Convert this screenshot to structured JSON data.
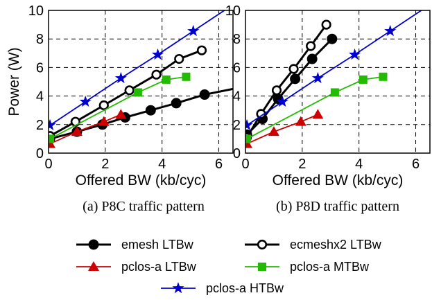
{
  "chart_data": [
    {
      "type": "line",
      "caption": "(a) P8C traffic pattern",
      "xlabel": "Offered BW (kb/cyc)",
      "ylabel": "Power (W)",
      "xlim": [
        0,
        6.5
      ],
      "ylim": [
        0,
        10
      ],
      "xticks": [
        "0",
        "2",
        "4",
        "6"
      ],
      "yticks": [
        "0",
        "2",
        "4",
        "6",
        "8",
        "10"
      ],
      "grid": true,
      "series": [
        {
          "name": "emesh LTBw",
          "color": "#000000",
          "marker": "filled-circle",
          "x": [
            0.05,
            1.0,
            1.9,
            2.7,
            3.6,
            4.5,
            5.5
          ],
          "y": [
            1.0,
            1.5,
            2.0,
            2.5,
            3.0,
            3.5,
            4.1
          ],
          "line_extend": [
            6.5,
            4.5
          ]
        },
        {
          "name": "ecmeshx2 LTBw",
          "color": "#000000",
          "marker": "open-circle",
          "x": [
            0.05,
            0.95,
            1.95,
            2.85,
            3.8,
            4.6,
            5.4
          ],
          "y": [
            1.2,
            2.2,
            3.35,
            4.4,
            5.5,
            6.6,
            7.2
          ]
        },
        {
          "name": "pclos-a LTBw",
          "color": "#cc0000",
          "marker": "triangle",
          "x": [
            0.05,
            1.0,
            1.95,
            2.55
          ],
          "y": [
            0.65,
            1.5,
            2.2,
            2.7
          ]
        },
        {
          "name": "pclos-a MTBw",
          "color": "#22bb00",
          "marker": "square",
          "x": [
            0.05,
            3.15,
            4.15,
            4.85
          ],
          "y": [
            1.0,
            4.25,
            5.15,
            5.35
          ]
        },
        {
          "name": "pclos-a HTBw",
          "color": "#0000cc",
          "marker": "star",
          "x": [
            0.05,
            1.3,
            2.55,
            3.85,
            5.1
          ],
          "y": [
            1.95,
            3.6,
            5.25,
            6.9,
            8.55
          ],
          "line_extend": [
            6.5,
            10.4
          ]
        }
      ]
    },
    {
      "type": "line",
      "caption": "(b) P8D traffic pattern",
      "xlabel": "Offered BW (kb/cyc)",
      "ylabel": "",
      "xlim": [
        0,
        6.5
      ],
      "ylim": [
        0,
        10
      ],
      "xticks": [
        "0",
        "2",
        "4",
        "6"
      ],
      "yticks": [
        "0",
        "2",
        "4",
        "6",
        "8",
        "10"
      ],
      "grid": true,
      "series": [
        {
          "name": "emesh LTBw",
          "color": "#000000",
          "marker": "filled-circle",
          "x": [
            0.05,
            0.6,
            1.15,
            1.75,
            2.35,
            3.05
          ],
          "y": [
            1.3,
            2.4,
            3.8,
            5.2,
            6.6,
            8.0
          ]
        },
        {
          "name": "ecmeshx2 LTBw",
          "color": "#000000",
          "marker": "open-circle",
          "x": [
            0.05,
            0.55,
            1.1,
            1.7,
            2.3,
            2.85
          ],
          "y": [
            1.1,
            2.75,
            4.4,
            5.9,
            7.5,
            9.0
          ]
        },
        {
          "name": "pclos-a LTBw",
          "color": "#cc0000",
          "marker": "triangle",
          "x": [
            0.05,
            1.0,
            1.95,
            2.55
          ],
          "y": [
            0.65,
            1.5,
            2.2,
            2.7
          ]
        },
        {
          "name": "pclos-a MTBw",
          "color": "#22bb00",
          "marker": "square",
          "x": [
            0.05,
            3.15,
            4.15,
            4.85
          ],
          "y": [
            1.0,
            4.25,
            5.15,
            5.35
          ]
        },
        {
          "name": "pclos-a HTBw",
          "color": "#0000cc",
          "marker": "star",
          "x": [
            0.05,
            1.3,
            2.55,
            3.85,
            5.1
          ],
          "y": [
            1.95,
            3.6,
            5.25,
            6.9,
            8.55
          ],
          "line_extend": [
            6.5,
            10.4
          ]
        }
      ]
    }
  ],
  "legend": [
    {
      "label": "emesh LTBw",
      "color": "#000000",
      "marker": "filled-circle"
    },
    {
      "label": "ecmeshx2 LTBw",
      "color": "#000000",
      "marker": "open-circle"
    },
    {
      "label": "pclos-a LTBw",
      "color": "#cc0000",
      "marker": "triangle"
    },
    {
      "label": "pclos-a MTBw",
      "color": "#22bb00",
      "marker": "square"
    },
    {
      "label": "pclos-a HTBw",
      "color": "#0000cc",
      "marker": "star"
    }
  ]
}
